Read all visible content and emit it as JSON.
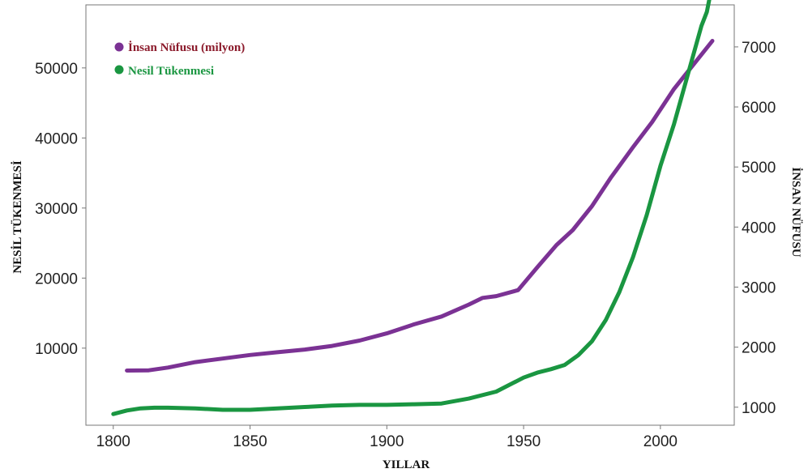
{
  "chart_data": {
    "type": "line",
    "xlabel": "YILLAR",
    "ylabel_left": "NESİL TÜKENMESİ",
    "ylabel_right": "İNSAN NÜFUSU",
    "xlim": [
      1790,
      2027
    ],
    "ylim_left": [
      -1000,
      59000
    ],
    "ylim_right": [
      700,
      7700
    ],
    "x_ticks": [
      1800,
      1850,
      1900,
      1950,
      2000
    ],
    "y_ticks_left": [
      10000,
      20000,
      30000,
      40000,
      50000
    ],
    "y_ticks_right": [
      1000,
      2000,
      3000,
      4000,
      5000,
      6000,
      7000
    ],
    "grid": false,
    "legend_position": "top-left",
    "series": [
      {
        "name": "İnsan Nüfusu (milyon)",
        "axis": "right",
        "color": "#7B3294",
        "legend_color": "#8B1A2B",
        "x": [
          1805,
          1813,
          1820,
          1830,
          1840,
          1850,
          1860,
          1870,
          1880,
          1890,
          1900,
          1910,
          1920,
          1930,
          1935,
          1940,
          1948,
          1955,
          1962,
          1968,
          1975,
          1982,
          1990,
          1997,
          2005,
          2012,
          2019
        ],
        "values": [
          1610,
          1615,
          1660,
          1750,
          1810,
          1870,
          1915,
          1960,
          2020,
          2110,
          2230,
          2380,
          2510,
          2710,
          2820,
          2850,
          2950,
          3330,
          3700,
          3950,
          4350,
          4830,
          5330,
          5750,
          6300,
          6700,
          7100
        ]
      },
      {
        "name": "Nesil Tükenmesi",
        "axis": "left",
        "color": "#1A9641",
        "legend_color": "#1A9641",
        "x": [
          1800,
          1805,
          1810,
          1815,
          1820,
          1830,
          1840,
          1850,
          1860,
          1870,
          1880,
          1890,
          1900,
          1910,
          1920,
          1930,
          1940,
          1950,
          1955,
          1960,
          1965,
          1970,
          1975,
          1980,
          1985,
          1990,
          1995,
          2000,
          2005,
          2010,
          2015,
          2017,
          2018
        ],
        "values": [
          600,
          1100,
          1400,
          1500,
          1500,
          1400,
          1200,
          1200,
          1400,
          1600,
          1800,
          1900,
          1900,
          2000,
          2100,
          2800,
          3800,
          5800,
          6500,
          7000,
          7600,
          9000,
          11000,
          14000,
          18000,
          23000,
          29000,
          36000,
          42000,
          49000,
          56000,
          58000,
          60000
        ]
      }
    ]
  }
}
